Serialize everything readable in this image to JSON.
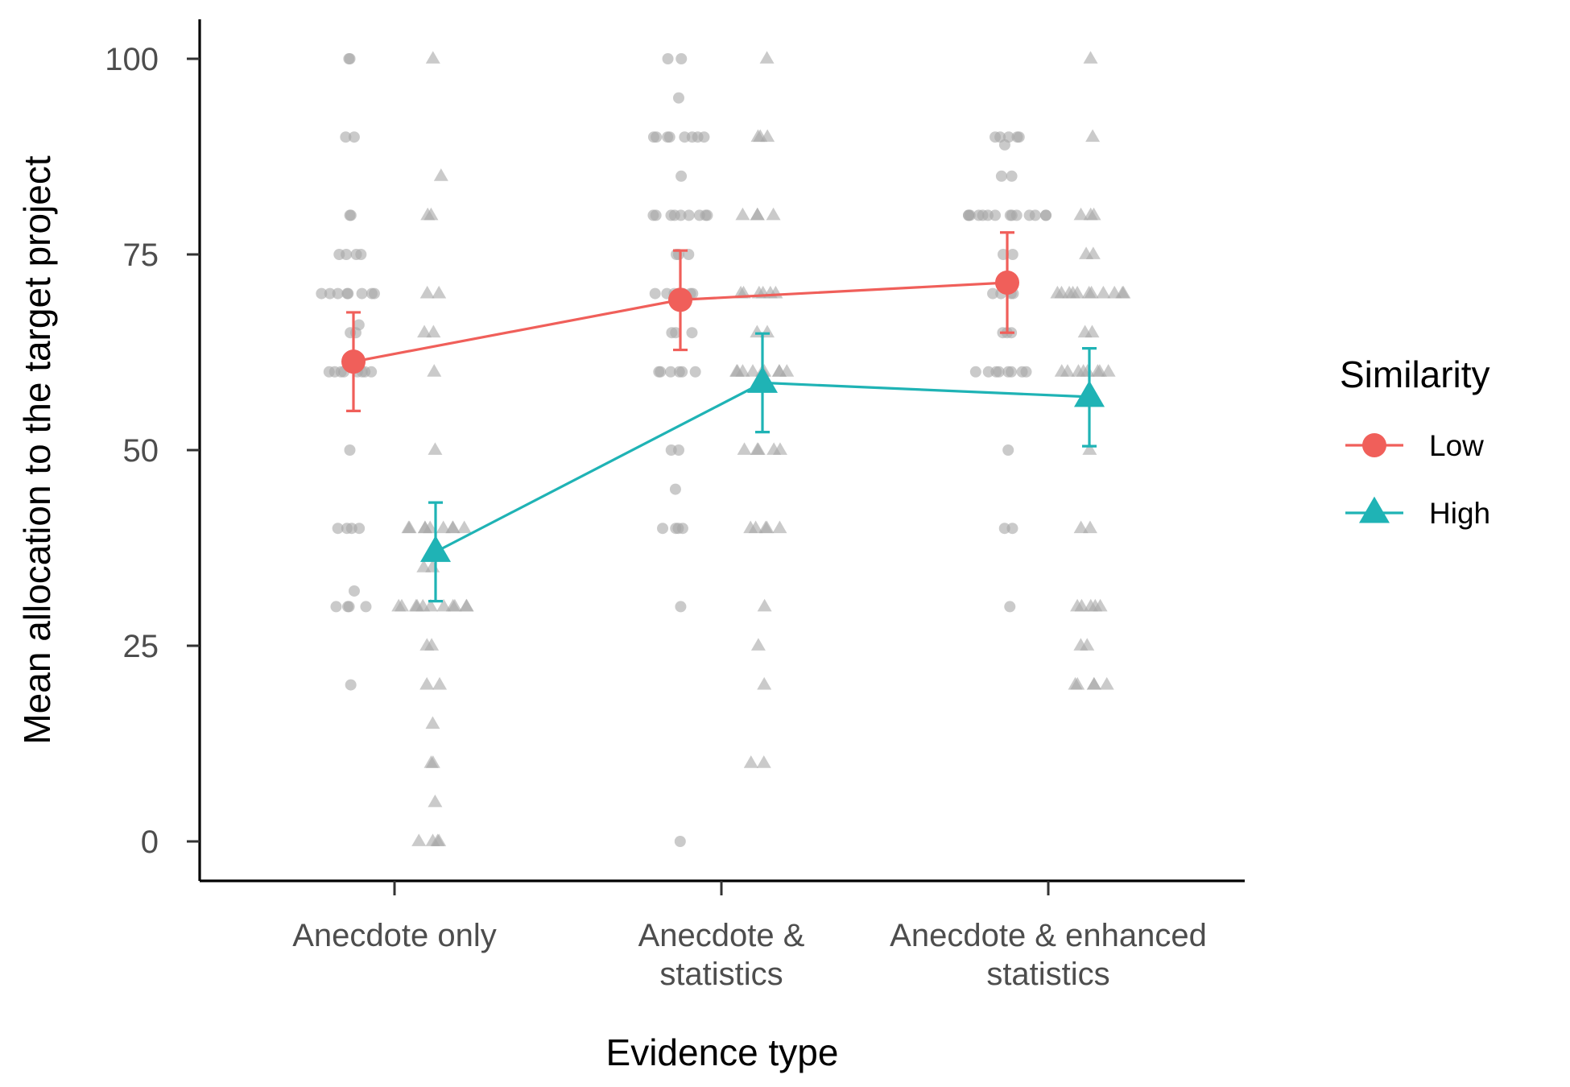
{
  "chart_data": {
    "type": "line",
    "xlabel": "Evidence type",
    "ylabel": "Mean allocation to the target project",
    "categories": [
      [
        "Anecdote only"
      ],
      [
        "Anecdote &",
        "statistics"
      ],
      [
        "Anecdote & enhanced",
        "statistics"
      ]
    ],
    "ylim": [
      -5,
      105
    ],
    "yticks": [
      0,
      25,
      50,
      75,
      100
    ],
    "grid": false,
    "legend": {
      "title": "Similarity",
      "position": "right"
    },
    "series": [
      {
        "name": "Low",
        "marker": "circle",
        "color": "#F05F5A",
        "means": [
          61.3,
          69.2,
          71.4
        ],
        "ci_low": [
          55.0,
          62.8,
          65.0
        ],
        "ci_high": [
          67.6,
          75.5,
          77.8
        ],
        "raw": [
          [
            100,
            100,
            90,
            90,
            80,
            80,
            75,
            75,
            75,
            75,
            70,
            70,
            70,
            70,
            70,
            70,
            70,
            70,
            66,
            65,
            65,
            60,
            60,
            60,
            60,
            60,
            60,
            60,
            60,
            50,
            40,
            40,
            40,
            40,
            32,
            30,
            30,
            30,
            30,
            20
          ],
          [
            100,
            100,
            95,
            90,
            90,
            90,
            90,
            90,
            90,
            90,
            90,
            85,
            80,
            80,
            80,
            80,
            80,
            80,
            80,
            80,
            80,
            75,
            75,
            75,
            70,
            70,
            70,
            70,
            70,
            70,
            65,
            65,
            65,
            60,
            60,
            60,
            60,
            60,
            60,
            50,
            50,
            45,
            40,
            40,
            40,
            40,
            30,
            0
          ],
          [
            90,
            90,
            90,
            90,
            90,
            89,
            85,
            85,
            80,
            80,
            80,
            80,
            80,
            80,
            80,
            80,
            80,
            80,
            80,
            80,
            80,
            80,
            75,
            75,
            70,
            70,
            70,
            70,
            65,
            65,
            65,
            60,
            60,
            60,
            60,
            60,
            60,
            60,
            60,
            50,
            40,
            40,
            30
          ]
        ]
      },
      {
        "name": "High",
        "marker": "triangle",
        "color": "#1FB3B5",
        "means": [
          37.0,
          58.6,
          56.8
        ],
        "ci_low": [
          30.7,
          52.3,
          50.5
        ],
        "ci_high": [
          43.3,
          64.9,
          63.0
        ],
        "raw": [
          [
            100,
            85,
            80,
            80,
            70,
            70,
            65,
            65,
            60,
            50,
            40,
            40,
            40,
            40,
            40,
            40,
            40,
            40,
            40,
            35,
            35,
            30,
            30,
            30,
            30,
            30,
            30,
            30,
            30,
            30,
            30,
            30,
            25,
            25,
            20,
            20,
            15,
            10,
            10,
            5,
            0,
            0,
            0,
            0
          ],
          [
            100,
            90,
            90,
            90,
            80,
            80,
            80,
            80,
            70,
            70,
            70,
            70,
            70,
            70,
            65,
            65,
            60,
            60,
            60,
            60,
            60,
            60,
            60,
            60,
            60,
            50,
            50,
            50,
            50,
            50,
            40,
            40,
            40,
            40,
            40,
            30,
            25,
            20,
            10,
            10
          ],
          [
            100,
            90,
            80,
            80,
            80,
            75,
            75,
            70,
            70,
            70,
            70,
            70,
            70,
            70,
            70,
            70,
            70,
            70,
            65,
            65,
            60,
            60,
            60,
            60,
            60,
            60,
            60,
            60,
            50,
            40,
            40,
            30,
            30,
            30,
            30,
            30,
            25,
            25,
            20,
            20,
            20,
            20,
            20
          ]
        ]
      }
    ]
  }
}
